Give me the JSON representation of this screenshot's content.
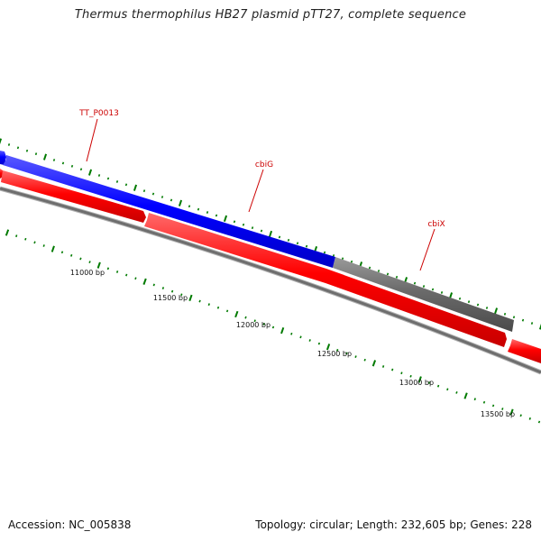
{
  "title": "Thermus thermophilus HB27 plasmid pTT27, complete sequence",
  "accession": "Accession: NC_005838",
  "summary": "Topology: circular; Length: 232,605 bp; Genes: 228",
  "colors": {
    "forward_gene": "#0000ff",
    "other_gene": "#6b6b6b",
    "reverse_gene": "#ff0000",
    "backbone": "#8a8a8a",
    "tick": "#007a00",
    "label": "#cc0000"
  },
  "gene_labels": [
    {
      "name": "TT_P0013"
    },
    {
      "name": "cbiG"
    },
    {
      "name": "cbiX"
    }
  ],
  "bp_labels": [
    "11000 bp",
    "11500 bp",
    "12000 bp",
    "12500 bp",
    "13000 bp",
    "13500 bp"
  ]
}
